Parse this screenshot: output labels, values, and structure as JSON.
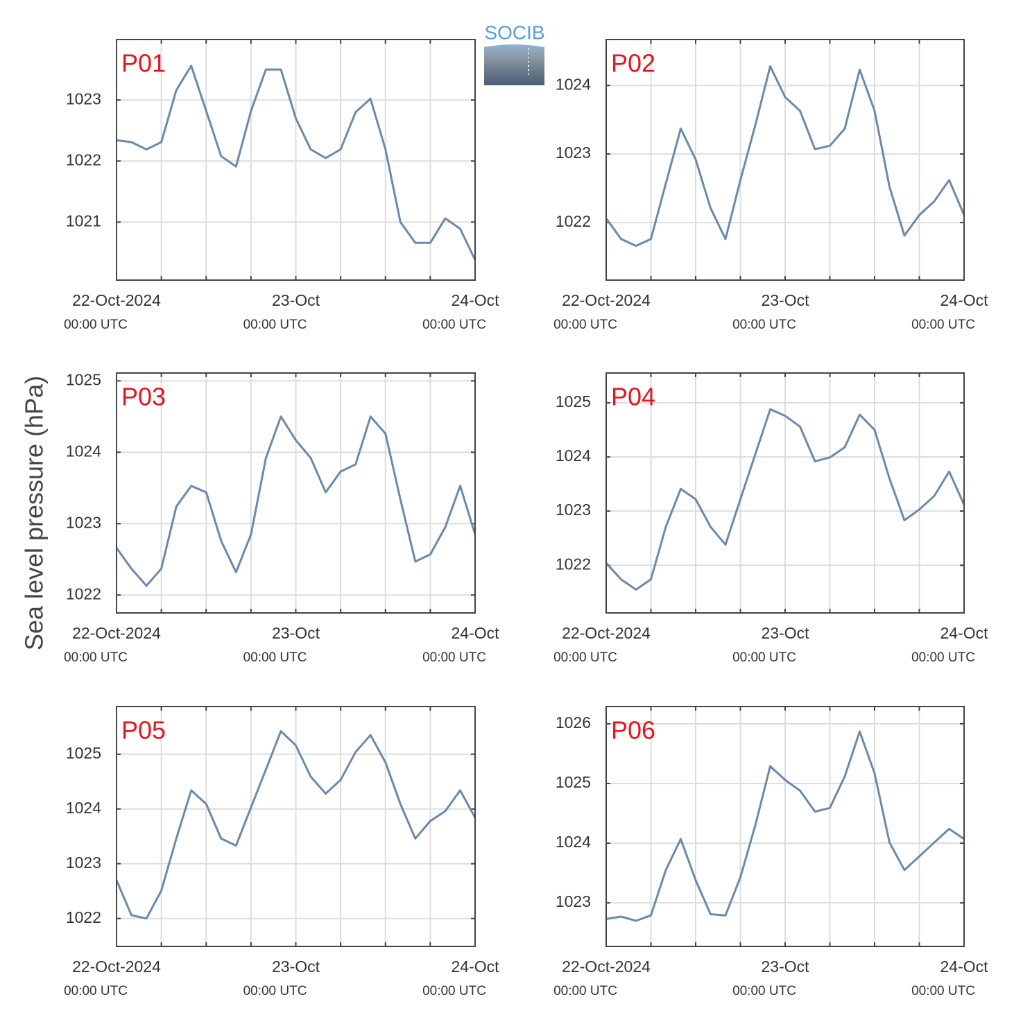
{
  "ylabel": "Sea level pressure (hPa)",
  "logo": "SOCIB",
  "chart_data": [
    {
      "type": "line",
      "title": "P01",
      "color": "#6a8aab",
      "x": [
        "2024-10-22T00:00",
        "2024-10-22T02:00",
        "2024-10-22T04:00",
        "2024-10-22T06:00",
        "2024-10-22T08:00",
        "2024-10-22T10:00",
        "2024-10-22T12:00",
        "2024-10-22T14:00",
        "2024-10-22T16:00",
        "2024-10-22T18:00",
        "2024-10-22T20:00",
        "2024-10-22T22:00",
        "2024-10-23T00:00",
        "2024-10-23T02:00",
        "2024-10-23T04:00",
        "2024-10-23T06:00",
        "2024-10-23T08:00",
        "2024-10-23T10:00",
        "2024-10-23T12:00",
        "2024-10-23T14:00",
        "2024-10-23T16:00",
        "2024-10-23T18:00",
        "2024-10-23T20:00",
        "2024-10-23T22:00",
        "2024-10-24T00:00"
      ],
      "values": [
        1022.34,
        1022.31,
        1022.19,
        1022.31,
        1023.16,
        1023.56,
        1022.82,
        1022.08,
        1021.91,
        1022.82,
        1023.5,
        1023.5,
        1022.7,
        1022.19,
        1022.05,
        1022.19,
        1022.8,
        1023.02,
        1022.19,
        1021.0,
        1020.66,
        1020.66,
        1021.06,
        1020.89,
        1020.38
      ],
      "xlim": [
        "2024-10-22T00:00",
        "2024-10-24T00:00"
      ],
      "xticks": [
        {
          "value": "2024-10-22T00:00",
          "label": "22-Oct-2024",
          "sublabel": "00:00 UTC"
        },
        {
          "value": "2024-10-23T00:00",
          "label": "23-Oct",
          "sublabel": "00:00 UTC"
        },
        {
          "value": "2024-10-24T00:00",
          "label": "24-Oct",
          "sublabel": "00:00 UTC"
        }
      ],
      "xminorticks": [
        "2024-10-22T06:00",
        "2024-10-22T12:00",
        "2024-10-22T18:00",
        "2024-10-23T06:00",
        "2024-10-23T12:00",
        "2024-10-23T18:00"
      ],
      "ylim": [
        1020.05,
        1023.99
      ],
      "yticks": [
        1021,
        1022,
        1023
      ],
      "grid": true
    },
    {
      "type": "line",
      "title": "P02",
      "color": "#6a8aab",
      "x": [
        "2024-10-22T00:00",
        "2024-10-22T02:00",
        "2024-10-22T04:00",
        "2024-10-22T06:00",
        "2024-10-22T08:00",
        "2024-10-22T10:00",
        "2024-10-22T12:00",
        "2024-10-22T14:00",
        "2024-10-22T16:00",
        "2024-10-22T18:00",
        "2024-10-22T20:00",
        "2024-10-22T22:00",
        "2024-10-23T00:00",
        "2024-10-23T02:00",
        "2024-10-23T04:00",
        "2024-10-23T06:00",
        "2024-10-23T08:00",
        "2024-10-23T10:00",
        "2024-10-23T12:00",
        "2024-10-23T14:00",
        "2024-10-23T16:00",
        "2024-10-23T18:00",
        "2024-10-23T20:00",
        "2024-10-23T22:00",
        "2024-10-24T00:00"
      ],
      "values": [
        1022.06,
        1021.76,
        1021.66,
        1021.76,
        1022.57,
        1023.37,
        1022.92,
        1022.21,
        1021.76,
        1022.62,
        1023.42,
        1024.28,
        1023.83,
        1023.63,
        1023.07,
        1023.12,
        1023.37,
        1024.23,
        1023.63,
        1022.52,
        1021.81,
        1022.11,
        1022.31,
        1022.62,
        1022.11
      ],
      "xlim": [
        "2024-10-22T00:00",
        "2024-10-24T00:00"
      ],
      "xticks": [
        {
          "value": "2024-10-22T00:00",
          "label": "22-Oct-2024",
          "sublabel": "00:00 UTC"
        },
        {
          "value": "2024-10-23T00:00",
          "label": "23-Oct",
          "sublabel": "00:00 UTC"
        },
        {
          "value": "2024-10-24T00:00",
          "label": "24-Oct",
          "sublabel": "00:00 UTC"
        }
      ],
      "xminorticks": [
        "2024-10-22T06:00",
        "2024-10-22T12:00",
        "2024-10-22T18:00",
        "2024-10-23T06:00",
        "2024-10-23T12:00",
        "2024-10-23T18:00"
      ],
      "ylim": [
        1021.16,
        1024.67
      ],
      "yticks": [
        1022,
        1023,
        1024
      ],
      "grid": true
    },
    {
      "type": "line",
      "title": "P03",
      "color": "#6a8aab",
      "x": [
        "2024-10-22T00:00",
        "2024-10-22T02:00",
        "2024-10-22T04:00",
        "2024-10-22T06:00",
        "2024-10-22T08:00",
        "2024-10-22T10:00",
        "2024-10-22T12:00",
        "2024-10-22T14:00",
        "2024-10-22T16:00",
        "2024-10-22T18:00",
        "2024-10-22T20:00",
        "2024-10-22T22:00",
        "2024-10-23T00:00",
        "2024-10-23T02:00",
        "2024-10-23T04:00",
        "2024-10-23T06:00",
        "2024-10-23T08:00",
        "2024-10-23T10:00",
        "2024-10-23T12:00",
        "2024-10-23T14:00",
        "2024-10-23T16:00",
        "2024-10-23T18:00",
        "2024-10-23T20:00",
        "2024-10-23T22:00",
        "2024-10-24T00:00"
      ],
      "values": [
        1022.66,
        1022.37,
        1022.13,
        1022.37,
        1023.24,
        1023.53,
        1023.44,
        1022.76,
        1022.32,
        1022.85,
        1023.92,
        1024.5,
        1024.17,
        1023.92,
        1023.44,
        1023.73,
        1023.83,
        1024.5,
        1024.26,
        1023.34,
        1022.47,
        1022.57,
        1022.95,
        1023.53,
        1022.85
      ],
      "xlim": [
        "2024-10-22T00:00",
        "2024-10-24T00:00"
      ],
      "xticks": [
        {
          "value": "2024-10-22T00:00",
          "label": "22-Oct-2024",
          "sublabel": "00:00 UTC"
        },
        {
          "value": "2024-10-23T00:00",
          "label": "23-Oct",
          "sublabel": "00:00 UTC"
        },
        {
          "value": "2024-10-24T00:00",
          "label": "24-Oct",
          "sublabel": "00:00 UTC"
        }
      ],
      "xminorticks": [
        "2024-10-22T06:00",
        "2024-10-22T12:00",
        "2024-10-22T18:00",
        "2024-10-23T06:00",
        "2024-10-23T12:00",
        "2024-10-23T18:00"
      ],
      "ylim": [
        1021.75,
        1025.11
      ],
      "yticks": [
        1022,
        1023,
        1024,
        1025
      ],
      "grid": true
    },
    {
      "type": "line",
      "title": "P04",
      "color": "#6a8aab",
      "x": [
        "2024-10-22T00:00",
        "2024-10-22T02:00",
        "2024-10-22T04:00",
        "2024-10-22T06:00",
        "2024-10-22T08:00",
        "2024-10-22T10:00",
        "2024-10-22T12:00",
        "2024-10-22T14:00",
        "2024-10-22T16:00",
        "2024-10-22T18:00",
        "2024-10-22T20:00",
        "2024-10-22T22:00",
        "2024-10-23T00:00",
        "2024-10-23T02:00",
        "2024-10-23T04:00",
        "2024-10-23T06:00",
        "2024-10-23T08:00",
        "2024-10-23T10:00",
        "2024-10-23T12:00",
        "2024-10-23T14:00",
        "2024-10-23T16:00",
        "2024-10-23T18:00",
        "2024-10-23T20:00",
        "2024-10-23T22:00",
        "2024-10-24T00:00"
      ],
      "values": [
        1022.04,
        1021.74,
        1021.55,
        1021.74,
        1022.71,
        1023.41,
        1023.22,
        1022.71,
        1022.38,
        1023.22,
        1024.05,
        1024.88,
        1024.76,
        1024.56,
        1023.92,
        1023.99,
        1024.18,
        1024.78,
        1024.5,
        1023.6,
        1022.83,
        1023.03,
        1023.28,
        1023.73,
        1023.12
      ],
      "xlim": [
        "2024-10-22T00:00",
        "2024-10-24T00:00"
      ],
      "xticks": [
        {
          "value": "2024-10-22T00:00",
          "label": "22-Oct-2024",
          "sublabel": "00:00 UTC"
        },
        {
          "value": "2024-10-23T00:00",
          "label": "23-Oct",
          "sublabel": "00:00 UTC"
        },
        {
          "value": "2024-10-24T00:00",
          "label": "24-Oct",
          "sublabel": "00:00 UTC"
        }
      ],
      "xminorticks": [
        "2024-10-22T06:00",
        "2024-10-22T12:00",
        "2024-10-22T18:00",
        "2024-10-23T06:00",
        "2024-10-23T12:00",
        "2024-10-23T18:00"
      ],
      "ylim": [
        1021.12,
        1025.55
      ],
      "yticks": [
        1022,
        1023,
        1024,
        1025
      ],
      "grid": true
    },
    {
      "type": "line",
      "title": "P05",
      "color": "#6a8aab",
      "x": [
        "2024-10-22T00:00",
        "2024-10-22T02:00",
        "2024-10-22T04:00",
        "2024-10-22T06:00",
        "2024-10-22T08:00",
        "2024-10-22T10:00",
        "2024-10-22T12:00",
        "2024-10-22T14:00",
        "2024-10-22T16:00",
        "2024-10-22T18:00",
        "2024-10-22T20:00",
        "2024-10-22T22:00",
        "2024-10-23T00:00",
        "2024-10-23T02:00",
        "2024-10-23T04:00",
        "2024-10-23T06:00",
        "2024-10-23T08:00",
        "2024-10-23T10:00",
        "2024-10-23T12:00",
        "2024-10-23T14:00",
        "2024-10-23T16:00",
        "2024-10-23T18:00",
        "2024-10-23T20:00",
        "2024-10-23T22:00",
        "2024-10-24T00:00"
      ],
      "values": [
        1022.7,
        1022.06,
        1022.0,
        1022.51,
        1023.46,
        1024.34,
        1024.09,
        1023.46,
        1023.33,
        1024.03,
        1024.72,
        1025.42,
        1025.16,
        1024.59,
        1024.28,
        1024.53,
        1025.04,
        1025.35,
        1024.85,
        1024.09,
        1023.46,
        1023.78,
        1023.96,
        1024.34,
        1023.84
      ],
      "xlim": [
        "2024-10-22T00:00",
        "2024-10-24T00:00"
      ],
      "xticks": [
        {
          "value": "2024-10-22T00:00",
          "label": "22-Oct-2024",
          "sublabel": "00:00 UTC"
        },
        {
          "value": "2024-10-23T00:00",
          "label": "23-Oct",
          "sublabel": "00:00 UTC"
        },
        {
          "value": "2024-10-24T00:00",
          "label": "24-Oct",
          "sublabel": "00:00 UTC"
        }
      ],
      "xminorticks": [
        "2024-10-22T06:00",
        "2024-10-22T12:00",
        "2024-10-22T18:00",
        "2024-10-23T06:00",
        "2024-10-23T12:00",
        "2024-10-23T18:00"
      ],
      "ylim": [
        1021.49,
        1025.87
      ],
      "yticks": [
        1022,
        1023,
        1024,
        1025
      ],
      "grid": true
    },
    {
      "type": "line",
      "title": "P06",
      "color": "#6a8aab",
      "x": [
        "2024-10-22T00:00",
        "2024-10-22T02:00",
        "2024-10-22T04:00",
        "2024-10-22T06:00",
        "2024-10-22T08:00",
        "2024-10-22T10:00",
        "2024-10-22T12:00",
        "2024-10-22T14:00",
        "2024-10-22T16:00",
        "2024-10-22T18:00",
        "2024-10-22T20:00",
        "2024-10-22T22:00",
        "2024-10-23T00:00",
        "2024-10-23T02:00",
        "2024-10-23T04:00",
        "2024-10-23T06:00",
        "2024-10-23T08:00",
        "2024-10-23T10:00",
        "2024-10-23T12:00",
        "2024-10-23T14:00",
        "2024-10-23T16:00",
        "2024-10-23T18:00",
        "2024-10-23T20:00",
        "2024-10-23T22:00",
        "2024-10-24T00:00"
      ],
      "values": [
        1022.73,
        1022.77,
        1022.7,
        1022.79,
        1023.55,
        1024.07,
        1023.38,
        1022.81,
        1022.79,
        1023.43,
        1024.3,
        1025.29,
        1025.06,
        1024.88,
        1024.53,
        1024.59,
        1025.12,
        1025.87,
        1025.17,
        1024.01,
        1023.55,
        1023.78,
        1024.01,
        1024.24,
        1024.07
      ],
      "xlim": [
        "2024-10-22T00:00",
        "2024-10-24T00:00"
      ],
      "xticks": [
        {
          "value": "2024-10-22T00:00",
          "label": "22-Oct-2024",
          "sublabel": "00:00 UTC"
        },
        {
          "value": "2024-10-23T00:00",
          "label": "23-Oct",
          "sublabel": "00:00 UTC"
        },
        {
          "value": "2024-10-24T00:00",
          "label": "24-Oct",
          "sublabel": "00:00 UTC"
        }
      ],
      "xminorticks": [
        "2024-10-22T06:00",
        "2024-10-22T12:00",
        "2024-10-22T18:00",
        "2024-10-23T06:00",
        "2024-10-23T12:00",
        "2024-10-23T18:00"
      ],
      "ylim": [
        1022.27,
        1026.29
      ],
      "yticks": [
        1023,
        1024,
        1025,
        1026
      ],
      "grid": true
    }
  ]
}
